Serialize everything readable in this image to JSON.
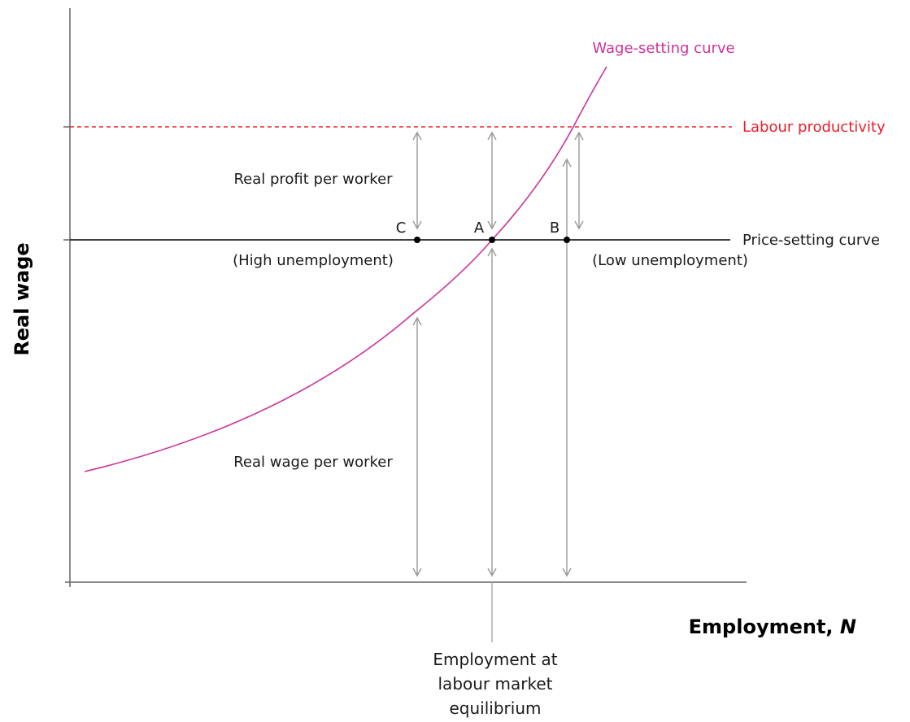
{
  "axes": {
    "y_title": "Real wage",
    "x_title": "Employment, ",
    "x_title_var": "N"
  },
  "curves": {
    "wage_setting": {
      "label": "Wage-setting curve",
      "color": "#cc3399"
    },
    "labour_productivity": {
      "label": "Labour productivity",
      "color": "#e8202a"
    },
    "price_setting": {
      "label": "Price-setting curve",
      "color": "#000000"
    }
  },
  "points": {
    "a": "A",
    "b": "B",
    "c": "C"
  },
  "annotations": {
    "real_profit": "Real profit per worker",
    "real_wage": "Real wage per worker",
    "high_unemployment": "(High unemployment)",
    "low_unemployment": "(Low unemployment)",
    "equilibrium_line1": "Employment at",
    "equilibrium_line2": "labour market",
    "equilibrium_line3": "equilibrium"
  },
  "colors": {
    "axis": "#666666",
    "arrow": "#999999"
  }
}
